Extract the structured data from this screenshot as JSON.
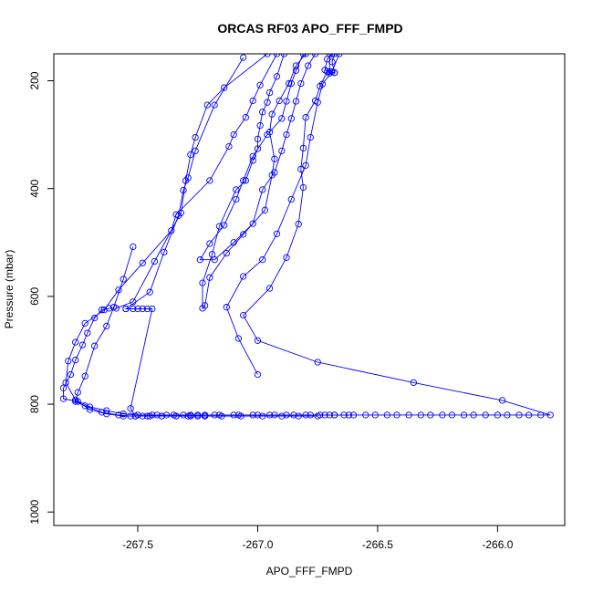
{
  "chart_data": {
    "type": "line",
    "title": "ORCAS RF03 APO_FFF_FMPD",
    "xlabel": "APO_FFF_FMPD",
    "ylabel": "Pressure (mbar)",
    "xlim": [
      -267.85,
      -265.72
    ],
    "ylim": [
      1025,
      150
    ],
    "y_reversed": true,
    "grid": false,
    "marker": "open-circle",
    "color": "#0000ff",
    "x_ticks": [
      -267.5,
      -267.0,
      -266.5,
      -266.0
    ],
    "x_tick_labels": [
      "-267.5",
      "-267.0",
      "-266.5",
      "-266.0"
    ],
    "y_ticks": [
      200,
      400,
      600,
      800,
      1000
    ],
    "y_tick_labels": [
      "200",
      "400",
      "600",
      "800",
      "1000"
    ],
    "series": [
      {
        "points": [
          [
            -267.06,
            157
          ],
          [
            -267.18,
            245
          ],
          [
            -267.26,
            330
          ],
          [
            -267.29,
            380
          ],
          [
            -267.31,
            403
          ],
          [
            -267.33,
            450
          ],
          [
            -267.39,
            518
          ],
          [
            -267.45,
            592
          ],
          [
            -267.55,
            623
          ],
          [
            -267.55,
            623
          ],
          [
            -267.52,
            623
          ],
          [
            -267.5,
            623
          ],
          [
            -267.48,
            623
          ],
          [
            -267.46,
            623
          ],
          [
            -267.44,
            623
          ],
          [
            -267.53,
            808
          ],
          [
            -267.51,
            822
          ],
          [
            -267.45,
            822
          ],
          [
            -267.4,
            822
          ],
          [
            -267.34,
            822
          ],
          [
            -267.29,
            822
          ],
          [
            -267.25,
            822
          ],
          [
            -267.22,
            822
          ]
        ]
      },
      {
        "points": [
          [
            -266.96,
            150
          ],
          [
            -267.14,
            213
          ],
          [
            -267.21,
            245
          ],
          [
            -267.26,
            305
          ],
          [
            -267.28,
            337
          ],
          [
            -267.3,
            385
          ],
          [
            -267.32,
            445
          ],
          [
            -267.43,
            535
          ],
          [
            -267.52,
            610
          ],
          [
            -267.59,
            622
          ],
          [
            -267.62,
            622
          ],
          [
            -267.65,
            625
          ],
          [
            -267.68,
            640
          ],
          [
            -267.71,
            668
          ],
          [
            -267.73,
            690
          ],
          [
            -267.76,
            718
          ],
          [
            -267.78,
            745
          ],
          [
            -267.81,
            770
          ],
          [
            -267.81,
            790
          ],
          [
            -267.75,
            795
          ],
          [
            -267.7,
            810
          ],
          [
            -267.63,
            818
          ],
          [
            -267.56,
            822
          ],
          [
            -267.51,
            822
          ],
          [
            -267.46,
            822
          ],
          [
            -267.4,
            822
          ],
          [
            -267.34,
            822
          ],
          [
            -267.28,
            822
          ],
          [
            -267.22,
            822
          ],
          [
            -267.15,
            822
          ],
          [
            -267.07,
            822
          ],
          [
            -266.98,
            822
          ],
          [
            -266.9,
            822
          ],
          [
            -266.83,
            822
          ],
          [
            -266.75,
            822
          ]
        ]
      },
      {
        "points": [
          [
            -267.52,
            508
          ],
          [
            -267.56,
            568
          ],
          [
            -267.6,
            620
          ],
          [
            -267.63,
            655
          ],
          [
            -267.68,
            692
          ],
          [
            -267.72,
            748
          ],
          [
            -267.75,
            778
          ],
          [
            -267.76,
            795
          ],
          [
            -267.72,
            803
          ],
          [
            -267.65,
            815
          ],
          [
            -267.58,
            820
          ],
          [
            -267.53,
            822
          ],
          [
            -267.48,
            822
          ],
          [
            -267.42,
            820
          ],
          [
            -267.35,
            820
          ],
          [
            -267.28,
            820
          ],
          [
            -267.22,
            820
          ],
          [
            -267.16,
            820
          ],
          [
            -267.08,
            820
          ],
          [
            -267.0,
            820
          ],
          [
            -266.93,
            820
          ],
          [
            -266.85,
            820
          ],
          [
            -266.78,
            820
          ],
          [
            -266.7,
            820
          ]
        ]
      },
      {
        "points": [
          [
            -266.92,
            150
          ],
          [
            -266.99,
            208
          ],
          [
            -267.02,
            237
          ],
          [
            -267.05,
            268
          ],
          [
            -267.1,
            300
          ],
          [
            -267.12,
            322
          ],
          [
            -267.2,
            385
          ],
          [
            -267.34,
            448
          ],
          [
            -267.36,
            478
          ],
          [
            -267.48,
            538
          ],
          [
            -267.58,
            588
          ],
          [
            -267.64,
            625
          ],
          [
            -267.72,
            650
          ],
          [
            -267.76,
            685
          ],
          [
            -267.79,
            720
          ],
          [
            -267.8,
            760
          ],
          [
            -267.76,
            792
          ],
          [
            -267.7,
            805
          ],
          [
            -267.63,
            812
          ],
          [
            -267.56,
            818
          ],
          [
            -267.5,
            820
          ],
          [
            -267.44,
            820
          ],
          [
            -267.38,
            820
          ],
          [
            -267.31,
            820
          ],
          [
            -267.25,
            820
          ],
          [
            -267.18,
            820
          ],
          [
            -267.1,
            820
          ],
          [
            -267.02,
            820
          ],
          [
            -266.95,
            820
          ],
          [
            -266.88,
            820
          ],
          [
            -266.8,
            820
          ],
          [
            -266.74,
            820
          ],
          [
            -266.68,
            820
          ],
          [
            -266.62,
            820
          ]
        ]
      },
      {
        "points": [
          [
            -266.89,
            150
          ],
          [
            -266.92,
            192
          ],
          [
            -266.95,
            222
          ],
          [
            -266.96,
            240
          ],
          [
            -266.98,
            258
          ],
          [
            -266.99,
            283
          ],
          [
            -267.0,
            308
          ],
          [
            -267.0,
            326
          ],
          [
            -267.02,
            348
          ],
          [
            -267.05,
            385
          ],
          [
            -267.09,
            402
          ],
          [
            -267.16,
            470
          ],
          [
            -267.19,
            522
          ],
          [
            -267.23,
            575
          ],
          [
            -267.23,
            622
          ],
          [
            -267.22,
            617
          ],
          [
            -267.2,
            565
          ],
          [
            -267.13,
            520
          ],
          [
            -267.06,
            485
          ],
          [
            -266.97,
            440
          ],
          [
            -266.94,
            375
          ],
          [
            -266.93,
            345
          ],
          [
            -266.95,
            295
          ],
          [
            -266.94,
            262
          ],
          [
            -266.91,
            237
          ],
          [
            -266.87,
            205
          ],
          [
            -266.84,
            172
          ],
          [
            -266.8,
            150
          ]
        ]
      },
      {
        "points": [
          [
            -266.66,
            150
          ],
          [
            -266.69,
            183
          ],
          [
            -266.73,
            206
          ],
          [
            -266.75,
            240
          ],
          [
            -266.78,
            305
          ],
          [
            -266.8,
            357
          ],
          [
            -266.86,
            420
          ],
          [
            -266.92,
            484
          ],
          [
            -266.98,
            532
          ],
          [
            -267.06,
            563
          ],
          [
            -267.13,
            620
          ],
          [
            -267.08,
            678
          ],
          [
            -267.0,
            745
          ]
        ]
      },
      {
        "points": [
          [
            -266.81,
            150
          ],
          [
            -266.84,
            181
          ],
          [
            -266.86,
            205
          ],
          [
            -266.88,
            238
          ],
          [
            -266.9,
            270
          ],
          [
            -266.96,
            300
          ],
          [
            -267.02,
            340
          ],
          [
            -267.06,
            385
          ],
          [
            -267.09,
            420
          ],
          [
            -267.14,
            468
          ],
          [
            -267.2,
            502
          ],
          [
            -267.24,
            532
          ],
          [
            -267.18,
            532
          ],
          [
            -267.1,
            500
          ],
          [
            -267.02,
            465
          ],
          [
            -266.98,
            402
          ],
          [
            -266.93,
            370
          ],
          [
            -266.9,
            330
          ],
          [
            -266.88,
            300
          ],
          [
            -266.86,
            270
          ],
          [
            -266.84,
            238
          ],
          [
            -266.82,
            205
          ],
          [
            -266.79,
            172
          ],
          [
            -266.76,
            150
          ]
        ]
      },
      {
        "points": [
          [
            -266.7,
            150
          ],
          [
            -266.7,
            183
          ],
          [
            -266.68,
            185
          ],
          [
            -266.71,
            183
          ],
          [
            -266.74,
            210
          ],
          [
            -266.76,
            237
          ],
          [
            -266.8,
            268
          ],
          [
            -266.81,
            325
          ],
          [
            -266.82,
            364
          ],
          [
            -266.81,
            398
          ],
          [
            -266.83,
            466
          ],
          [
            -266.88,
            528
          ],
          [
            -266.95,
            585
          ],
          [
            -267.06,
            635
          ],
          [
            -267.0,
            682
          ],
          [
            -266.75,
            722
          ],
          [
            -266.35,
            760
          ],
          [
            -265.98,
            793
          ],
          [
            -265.78,
            820
          ],
          [
            -265.82,
            820
          ],
          [
            -265.87,
            820
          ],
          [
            -265.91,
            820
          ],
          [
            -265.96,
            820
          ],
          [
            -266.0,
            820
          ],
          [
            -266.05,
            820
          ],
          [
            -266.1,
            820
          ],
          [
            -266.14,
            820
          ],
          [
            -266.19,
            820
          ],
          [
            -266.23,
            820
          ],
          [
            -266.28,
            820
          ],
          [
            -266.32,
            820
          ],
          [
            -266.37,
            820
          ],
          [
            -266.42,
            820
          ],
          [
            -266.46,
            820
          ],
          [
            -266.51,
            820
          ],
          [
            -266.55,
            820
          ],
          [
            -266.6,
            820
          ],
          [
            -266.64,
            820
          ],
          [
            -266.68,
            820
          ],
          [
            -266.72,
            820
          ]
        ]
      },
      {
        "points": [
          [
            -266.68,
            150
          ],
          [
            -266.69,
            165
          ],
          [
            -266.68,
            185
          ],
          [
            -266.7,
            186
          ],
          [
            -266.72,
            180
          ],
          [
            -266.71,
            160
          ],
          [
            -266.69,
            150
          ]
        ]
      }
    ]
  }
}
